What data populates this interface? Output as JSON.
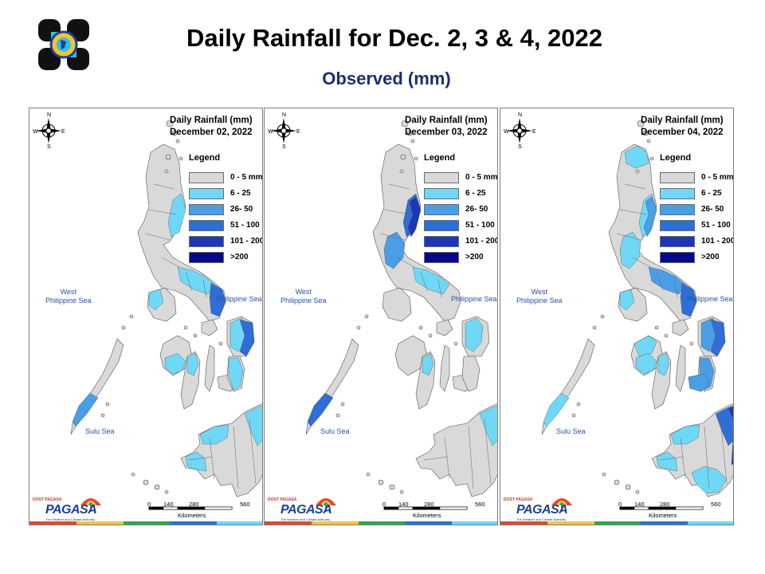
{
  "header": {
    "title": "Daily Rainfall for Dec. 2, 3 & 4, 2022",
    "subtitle": "Observed (mm)",
    "logo_icon": "dost-seal-icon"
  },
  "colors": {
    "land": "#d9d9d9",
    "c0": "#d9d9d9",
    "c1": "#6fd8f6",
    "c2": "#4a9ee6",
    "c3": "#2f6ed6",
    "c4": "#1d37b4",
    "c5": "#07088c",
    "title_blue": "#1f2d6b"
  },
  "legend": {
    "title": "Legend",
    "items": [
      {
        "label": "0 - 5 mm",
        "color": "#d9d9d9"
      },
      {
        "label": "6 - 25",
        "color": "#6fd8f6"
      },
      {
        "label": "26- 50",
        "color": "#4a9ee6"
      },
      {
        "label": "51 - 100",
        "color": "#2f6ed6"
      },
      {
        "label": "101 - 200",
        "color": "#1d37b4"
      },
      {
        "label": ">200",
        "color": "#07088c"
      }
    ]
  },
  "compass": {
    "n": "N",
    "s": "S",
    "e": "E",
    "w": "W"
  },
  "seas": {
    "west": "West\nPhilippine Sea",
    "east": "Philippine Sea",
    "sulu": "Sulu Sea"
  },
  "scale": {
    "ticks": [
      "0",
      "140",
      "280",
      "560"
    ],
    "unit": "Kilometers"
  },
  "brand": {
    "name": "PAGASA",
    "prefix": "DOST PAGASA",
    "tagline": "The Weather and Climate Authority"
  },
  "panels": [
    {
      "title_line1": "Daily Rainfall (mm)",
      "title_line2": "December 02, 2022",
      "zones": [
        {
          "region": "ne_luzon",
          "level": 1
        },
        {
          "region": "bicol_coast",
          "level": 1
        },
        {
          "region": "bicol_tip",
          "level": 3
        },
        {
          "region": "samar",
          "level": 1
        },
        {
          "region": "samar_east",
          "level": 3
        },
        {
          "region": "leyte",
          "level": 1
        },
        {
          "region": "palawan",
          "level": 2
        },
        {
          "region": "mindanao_north",
          "level": 1
        },
        {
          "region": "mindanao_ne",
          "level": 1
        },
        {
          "region": "mindanao_sw",
          "level": 1
        },
        {
          "region": "mindoro",
          "level": 1
        },
        {
          "region": "panay",
          "level": 1
        },
        {
          "region": "negros",
          "level": 1
        }
      ]
    },
    {
      "title_line1": "Daily Rainfall (mm)",
      "title_line2": "December 03, 2022",
      "zones": [
        {
          "region": "ne_luzon",
          "level": 3
        },
        {
          "region": "ne_luzon_coast",
          "level": 4
        },
        {
          "region": "central_luzon",
          "level": 2
        },
        {
          "region": "bicol_coast",
          "level": 1
        },
        {
          "region": "samar",
          "level": 1
        },
        {
          "region": "palawan",
          "level": 3
        },
        {
          "region": "mindanao_ne",
          "level": 1
        },
        {
          "region": "negros",
          "level": 1
        }
      ]
    },
    {
      "title_line1": "Daily Rainfall (mm)",
      "title_line2": "December 04, 2022",
      "zones": [
        {
          "region": "ne_luzon",
          "level": 1
        },
        {
          "region": "ne_luzon_coast",
          "level": 2
        },
        {
          "region": "north_tip",
          "level": 1
        },
        {
          "region": "central_luzon",
          "level": 1
        },
        {
          "region": "bicol_coast",
          "level": 2
        },
        {
          "region": "bicol_tip",
          "level": 3
        },
        {
          "region": "samar",
          "level": 2
        },
        {
          "region": "samar_east",
          "level": 3
        },
        {
          "region": "leyte",
          "level": 2
        },
        {
          "region": "visayas_west",
          "level": 1
        },
        {
          "region": "panay",
          "level": 1
        },
        {
          "region": "negros",
          "level": 1
        },
        {
          "region": "bohol",
          "level": 2
        },
        {
          "region": "mindanao_north",
          "level": 1
        },
        {
          "region": "mindanao_ne",
          "level": 3
        },
        {
          "region": "mindanao_east",
          "level": 4
        },
        {
          "region": "mindanao_sw",
          "level": 1
        },
        {
          "region": "mindanao_south",
          "level": 1
        },
        {
          "region": "palawan",
          "level": 1
        },
        {
          "region": "mindoro",
          "level": 1
        }
      ]
    }
  ]
}
